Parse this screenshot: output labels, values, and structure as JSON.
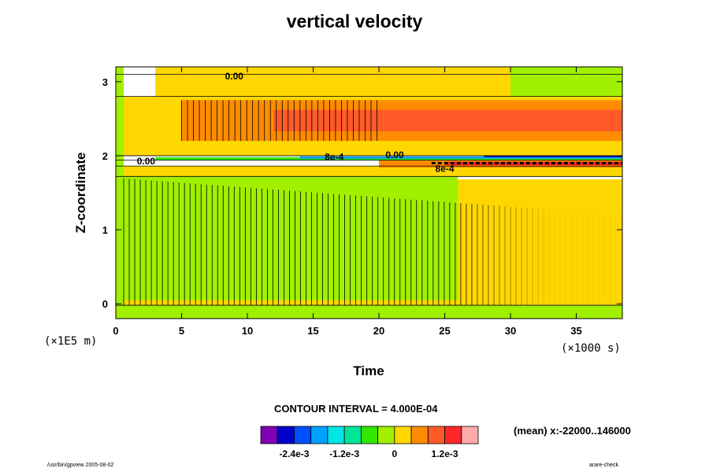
{
  "chart_data": {
    "type": "heatmap",
    "title": "vertical velocity",
    "xlabel": "Time",
    "ylabel": "Z-coordinate",
    "x_unit_label": "(×1000 s)",
    "y_unit_label": "(×1E5 m)",
    "x_ticks": [
      0,
      5,
      10,
      15,
      20,
      25,
      30,
      35
    ],
    "y_ticks": [
      0,
      1,
      2,
      3
    ],
    "xlim": [
      0,
      38.5
    ],
    "ylim": [
      -0.2,
      3.2
    ],
    "contour_interval_text": "CONTOUR INTERVAL = 4.000E-04",
    "mean_text": "(mean) x:-22000..146000",
    "colorbar": {
      "colors": [
        "#7f00b2",
        "#0000c8",
        "#0050ff",
        "#00a0ff",
        "#00e6e6",
        "#00e696",
        "#32e600",
        "#a0f000",
        "#ffd700",
        "#ff8c00",
        "#ff5a28",
        "#ff2828",
        "#ffaaaa"
      ],
      "tick_labels": [
        "-2.4e-3",
        "-1.2e-3",
        "0",
        "1.2e-3"
      ],
      "tick_positions": [
        2,
        5,
        8,
        11
      ]
    },
    "contour_labels": [
      "0.00",
      "8e-4",
      "8e-4"
    ],
    "regions": [
      {
        "name": "bottom-green-band",
        "z": [
          -0.2,
          -0.02
        ],
        "t": [
          0,
          38.5
        ],
        "color": "#a0f000"
      },
      {
        "name": "lower-yellow",
        "z": [
          -0.02,
          1.68
        ],
        "t": [
          0,
          38.5
        ],
        "color": "#ffd700"
      },
      {
        "name": "lower-green",
        "z": [
          0.05,
          1.72
        ],
        "t": [
          0,
          26
        ],
        "color": "#a0f000"
      },
      {
        "name": "mid-yellow",
        "z": [
          1.72,
          1.86
        ],
        "t": [
          0,
          38.5
        ],
        "color": "#ffd700"
      },
      {
        "name": "jet-orange",
        "z": [
          1.84,
          1.94
        ],
        "t": [
          20,
          38.5
        ],
        "color": "#ff8c00"
      },
      {
        "name": "jet-red",
        "z": [
          1.87,
          1.92
        ],
        "t": [
          25,
          38.5
        ],
        "color": "#ff2828"
      },
      {
        "name": "jet-green",
        "z": [
          1.94,
          1.98
        ],
        "t": [
          3,
          38.5
        ],
        "color": "#32e600"
      },
      {
        "name": "jet-cyan",
        "z": [
          1.96,
          1.99
        ],
        "t": [
          14,
          38.5
        ],
        "color": "#00a0ff"
      },
      {
        "name": "jet-blue",
        "z": [
          1.98,
          2.0
        ],
        "t": [
          28,
          38.5
        ],
        "color": "#0000c8"
      },
      {
        "name": "upper-yellow",
        "z": [
          2.0,
          2.8
        ],
        "t": [
          0,
          38.5
        ],
        "color": "#ffd700"
      },
      {
        "name": "upper-orange",
        "z": [
          2.2,
          2.75
        ],
        "t": [
          5,
          38.5
        ],
        "color": "#ff8c00"
      },
      {
        "name": "upper-red",
        "z": [
          2.33,
          2.62
        ],
        "t": [
          12,
          38.5
        ],
        "color": "#ff5a28"
      },
      {
        "name": "top-yellow",
        "z": [
          2.8,
          3.2
        ],
        "t": [
          3,
          30
        ],
        "color": "#ffd700"
      },
      {
        "name": "top-green",
        "z": [
          2.8,
          3.2
        ],
        "t": [
          30,
          38.5
        ],
        "color": "#a0f000"
      },
      {
        "name": "left-green",
        "z": [
          -0.02,
          3.2
        ],
        "t": [
          0,
          0.6
        ],
        "color": "#a0f000"
      }
    ]
  },
  "footer": {
    "left": "/usr/bin/gpview 2005-08-02",
    "right": "arare-check"
  }
}
